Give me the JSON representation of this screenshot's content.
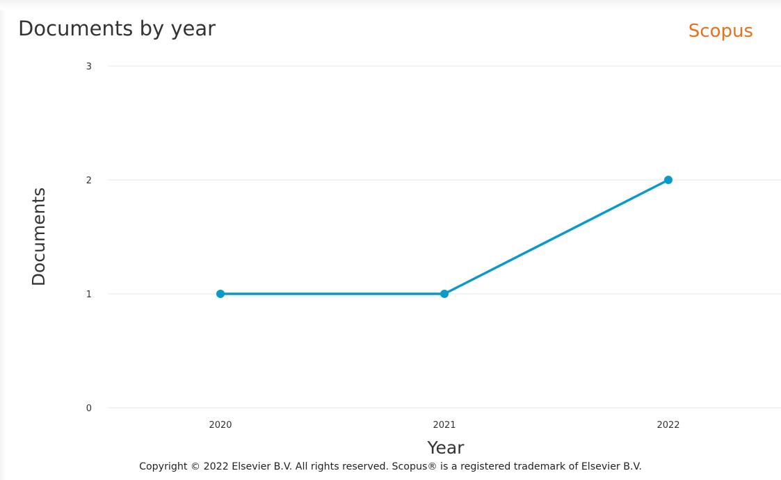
{
  "header": {
    "title": "Documents by year",
    "brand": "Scopus"
  },
  "footer": {
    "copyright": "Copyright © 2022 Elsevier B.V. All rights reserved. Scopus® is a registered trademark of Elsevier B.V."
  },
  "colors": {
    "series": "#0a9ac9",
    "brand": "#e9711c",
    "grid": "#e6e6e6"
  },
  "chart_data": {
    "type": "line",
    "title": "Documents by year",
    "xlabel": "Year",
    "ylabel": "Documents",
    "categories": [
      "2020",
      "2021",
      "2022"
    ],
    "series": [
      {
        "values": [
          1,
          1,
          2
        ]
      }
    ],
    "ylim": [
      0,
      3
    ],
    "yticks": [
      0,
      1,
      2,
      3
    ],
    "grid": true,
    "legend": "none"
  }
}
